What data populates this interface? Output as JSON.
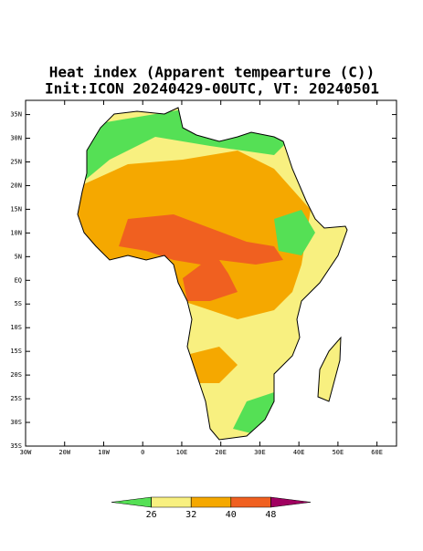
{
  "map": {
    "title": "Heat index (Apparent tempearture (C))",
    "subtitle": "Init:ICON 20240429-00UTC, VT: 20240501",
    "xlim": [
      -30,
      65
    ],
    "ylim": [
      -35,
      38
    ],
    "xticks": [
      {
        "value": -30,
        "label": "30W"
      },
      {
        "value": -20,
        "label": "20W"
      },
      {
        "value": -10,
        "label": "10W"
      },
      0,
      {
        "value": 10,
        "label": "10E"
      },
      {
        "value": 20,
        "label": "20E"
      },
      {
        "value": 30,
        "label": "30E"
      },
      {
        "value": 40,
        "label": "40E"
      },
      {
        "value": 50,
        "label": "50E"
      },
      {
        "value": 60,
        "label": "60E"
      }
    ],
    "yticks": [
      {
        "value": 35,
        "label": "35N"
      },
      {
        "value": 30,
        "label": "30N"
      },
      {
        "value": 25,
        "label": "25N"
      },
      {
        "value": 20,
        "label": "20N"
      },
      {
        "value": 15,
        "label": "15N"
      },
      {
        "value": 10,
        "label": "10N"
      },
      {
        "value": 5,
        "label": "5N"
      },
      {
        "value": 0,
        "label": "EQ"
      },
      {
        "value": -5,
        "label": "5S"
      },
      {
        "value": -10,
        "label": "10S"
      },
      {
        "value": -15,
        "label": "15S"
      },
      {
        "value": -20,
        "label": "20S"
      },
      {
        "value": -25,
        "label": "25S"
      },
      {
        "value": -30,
        "label": "30S"
      },
      {
        "value": -35,
        "label": "35S"
      }
    ],
    "colorbar": {
      "levels": [
        26,
        32,
        40,
        48
      ],
      "colors": [
        "#55e055",
        "#f8f080",
        "#f5a800",
        "#f06020",
        "#a00060"
      ]
    }
  }
}
